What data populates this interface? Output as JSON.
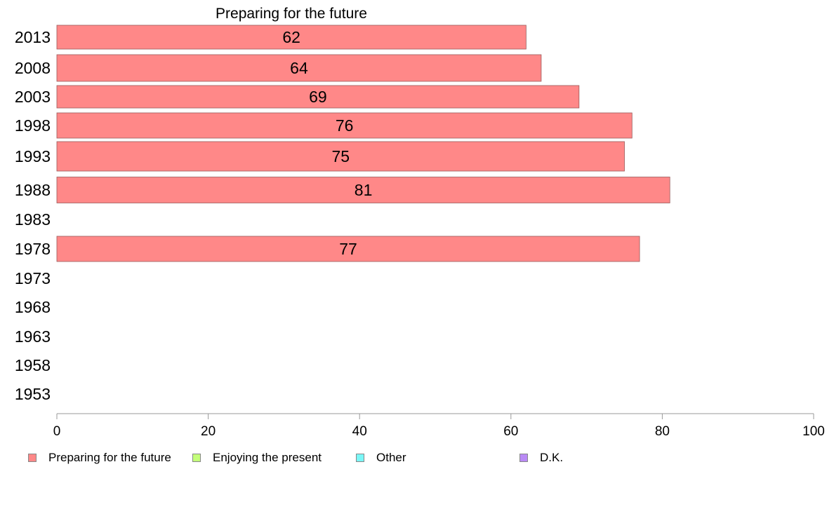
{
  "chart_data": {
    "type": "bar",
    "orientation": "horizontal",
    "title": "Preparing for the future",
    "categories": [
      "2013",
      "2008",
      "2003",
      "1998",
      "1993",
      "1988",
      "1983",
      "1978",
      "1973",
      "1968",
      "1963",
      "1958",
      "1953"
    ],
    "series": [
      {
        "name": "Preparing for the future",
        "color": "#ff8888",
        "values": [
          62,
          64,
          69,
          76,
          75,
          81,
          null,
          77,
          null,
          null,
          null,
          null,
          null
        ]
      },
      {
        "name": "Enjoying the present",
        "color": "#c4ff7a",
        "values": [
          null,
          null,
          null,
          null,
          null,
          null,
          null,
          null,
          null,
          null,
          null,
          null,
          null
        ]
      },
      {
        "name": "Other",
        "color": "#7af7f7",
        "values": [
          null,
          null,
          null,
          null,
          null,
          null,
          null,
          null,
          null,
          null,
          null,
          null,
          null
        ]
      },
      {
        "name": "D.K.",
        "color": "#b98af5",
        "values": [
          null,
          null,
          null,
          null,
          null,
          null,
          null,
          null,
          null,
          null,
          null,
          null,
          null
        ]
      }
    ],
    "xlim": [
      0,
      100
    ],
    "xticks": [
      "0",
      "20",
      "40",
      "60",
      "80",
      "100"
    ],
    "grid": false,
    "legend_position": "bottom"
  },
  "legend": [
    {
      "label": "Preparing for the future",
      "color": "#ff8888"
    },
    {
      "label": "Enjoying the present",
      "color": "#c4ff7a"
    },
    {
      "label": "Other",
      "color": "#7af7f7"
    },
    {
      "label": "D.K.",
      "color": "#b98af5"
    }
  ]
}
